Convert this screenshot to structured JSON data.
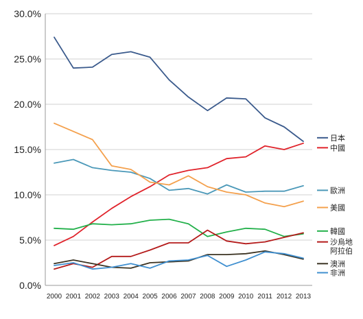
{
  "chart_data": {
    "type": "line",
    "title": "",
    "xlabel": "",
    "ylabel": "",
    "x": [
      2000,
      2001,
      2002,
      2003,
      2004,
      2005,
      2006,
      2007,
      2008,
      2009,
      2010,
      2011,
      2012,
      2013
    ],
    "x_tick_labels": [
      "2000",
      "2001",
      "2002",
      "2003",
      "2004",
      "2005",
      "2006",
      "2007",
      "2008",
      "2009",
      "2010",
      "2011",
      "2012",
      "2013"
    ],
    "ylim": [
      0,
      30
    ],
    "y_ticks": [
      0,
      5,
      10,
      15,
      20,
      25,
      30
    ],
    "y_tick_labels": [
      "0.0%",
      "5.0%",
      "10.0%",
      "15.0%",
      "20.0%",
      "25.0%",
      "30.0%"
    ],
    "grid": true,
    "legend_position": "right",
    "series": [
      {
        "name": "日本",
        "color": "#3a5a8c",
        "values": [
          27.4,
          24.0,
          24.1,
          25.5,
          25.8,
          25.2,
          22.7,
          20.8,
          19.3,
          20.7,
          20.6,
          18.5,
          17.5,
          15.9
        ],
        "legend_y": 16.3
      },
      {
        "name": "中國",
        "color": "#e0222a",
        "values": [
          4.4,
          5.4,
          7.0,
          8.5,
          9.8,
          10.9,
          12.2,
          12.7,
          13.0,
          14.0,
          14.2,
          15.4,
          15.0,
          15.7
        ],
        "legend_y": 15.2
      },
      {
        "name": "歐洲",
        "color": "#4a98b8",
        "values": [
          13.5,
          13.9,
          13.0,
          12.7,
          12.5,
          11.8,
          10.5,
          10.7,
          10.1,
          11.1,
          10.3,
          10.4,
          10.4,
          11.0
        ],
        "legend_y": 10.5
      },
      {
        "name": "美國",
        "color": "#f4a04c",
        "values": [
          17.9,
          17.0,
          16.1,
          13.2,
          12.8,
          11.4,
          11.1,
          12.1,
          10.9,
          10.3,
          10.0,
          9.1,
          8.7,
          9.3
        ],
        "legend_y": 8.6
      },
      {
        "name": "韓國",
        "color": "#22b04a",
        "values": [
          6.3,
          6.2,
          6.8,
          6.7,
          6.8,
          7.2,
          7.3,
          6.8,
          5.4,
          5.9,
          6.3,
          6.2,
          5.4,
          5.7
        ],
        "legend_y": 6.0
      },
      {
        "name": "沙烏地\n阿拉伯",
        "color": "#b41a1a",
        "values": [
          1.8,
          2.4,
          2.0,
          3.2,
          3.2,
          3.9,
          4.7,
          4.7,
          6.1,
          4.9,
          4.6,
          4.8,
          5.3,
          5.8
        ],
        "legend_y": 4.8
      },
      {
        "name": "澳洲",
        "color": "#3b3322",
        "values": [
          2.4,
          2.8,
          2.4,
          2.0,
          1.9,
          2.5,
          2.6,
          2.7,
          3.4,
          3.4,
          3.5,
          3.8,
          3.4,
          2.9
        ],
        "legend_y": 2.4
      },
      {
        "name": "非洲",
        "color": "#3f8fd0",
        "values": [
          2.2,
          2.5,
          1.8,
          2.0,
          2.4,
          1.9,
          2.7,
          2.8,
          3.3,
          2.1,
          2.8,
          3.7,
          3.5,
          3.0
        ],
        "legend_y": 1.4
      }
    ]
  }
}
